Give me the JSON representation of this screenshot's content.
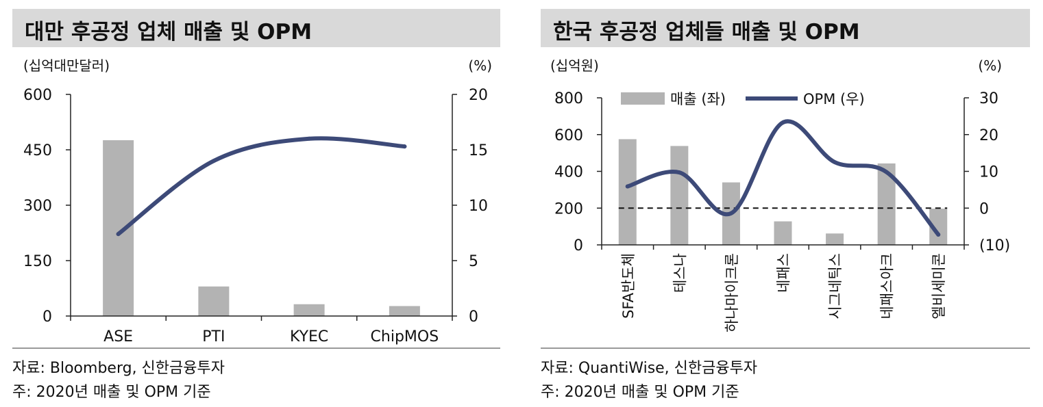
{
  "colors": {
    "bar": "#b3b3b3",
    "line": "#3d4a78",
    "axis": "#222222",
    "titlebar": "#d9d9d9",
    "zero_line": "#111111"
  },
  "left": {
    "title": "대만 후공정 업체 매출 및 OPM",
    "left_unit": "(십억대만달러)",
    "right_unit": "(%)",
    "source": "자료: Bloomberg, 신한금융투자",
    "note": "주: 2020년 매출 및 OPM 기준"
  },
  "right": {
    "title": "한국 후공정 업체들 매출 및 OPM",
    "left_unit": "(십억원)",
    "right_unit": "(%)",
    "legend_bar": "매출 (좌)",
    "legend_line": "OPM (우)",
    "source": "자료: QuantiWise, 신한금융투자",
    "note": "주: 2020년 매출 및 OPM 기준"
  },
  "chart_data": [
    {
      "type": "bar+line",
      "title": "대만 후공정 업체 매출 및 OPM",
      "categories": [
        "ASE",
        "PTI",
        "KYEC",
        "ChipMOS"
      ],
      "series": [
        {
          "name": "매출",
          "axis": "left",
          "type": "bar",
          "values": [
            476,
            80,
            32,
            27
          ]
        },
        {
          "name": "OPM",
          "axis": "right",
          "type": "line",
          "values": [
            7.4,
            14.0,
            16.0,
            15.3
          ]
        }
      ],
      "y_left": {
        "min": 0,
        "max": 600,
        "ticks": [
          0,
          150,
          300,
          450,
          600
        ],
        "labels": [
          "0",
          "150",
          "300",
          "450",
          "600"
        ]
      },
      "y_right": {
        "min": 0,
        "max": 20,
        "ticks": [
          0,
          5,
          10,
          15,
          20
        ],
        "labels": [
          "0",
          "5",
          "10",
          "15",
          "20"
        ]
      }
    },
    {
      "type": "bar+line",
      "title": "한국 후공정 업체들 매출 및 OPM",
      "categories": [
        "SFA반도체",
        "테스나",
        "하나마이크론",
        "네패스",
        "시그네틱스",
        "네패스아크",
        "엘비세미콘"
      ],
      "series": [
        {
          "name": "매출 (좌)",
          "axis": "left",
          "type": "bar",
          "values": [
            575,
            538,
            340,
            128,
            62,
            443,
            197
          ]
        },
        {
          "name": "OPM (우)",
          "axis": "right",
          "type": "line",
          "values": [
            5.9,
            9.7,
            -1.4,
            23.3,
            12.5,
            9.8,
            -7.2
          ]
        }
      ],
      "reference_line": {
        "axis": "right",
        "value": 0,
        "style": "dashed"
      },
      "y_left": {
        "min": 0,
        "max": 800,
        "ticks": [
          0,
          200,
          400,
          600,
          800
        ],
        "labels": [
          "0",
          "200",
          "400",
          "600",
          "800"
        ]
      },
      "y_right": {
        "min": -10,
        "max": 30,
        "ticks": [
          -10,
          0,
          10,
          20,
          30
        ],
        "labels": [
          "(10)",
          "0",
          "10",
          "20",
          "30"
        ]
      }
    }
  ]
}
